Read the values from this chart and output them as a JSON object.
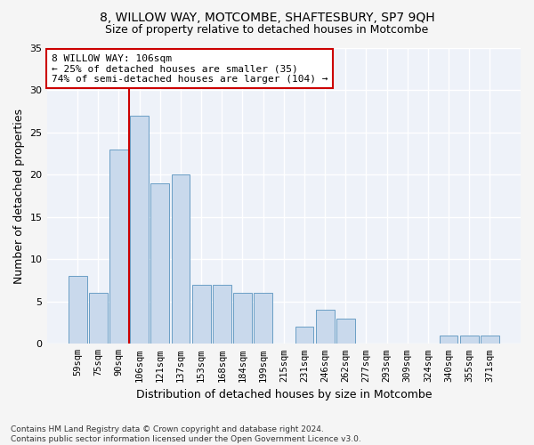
{
  "title": "8, WILLOW WAY, MOTCOMBE, SHAFTESBURY, SP7 9QH",
  "subtitle": "Size of property relative to detached houses in Motcombe",
  "xlabel": "Distribution of detached houses by size in Motcombe",
  "ylabel": "Number of detached properties",
  "categories": [
    "59sqm",
    "75sqm",
    "90sqm",
    "106sqm",
    "121sqm",
    "137sqm",
    "153sqm",
    "168sqm",
    "184sqm",
    "199sqm",
    "215sqm",
    "231sqm",
    "246sqm",
    "262sqm",
    "277sqm",
    "293sqm",
    "309sqm",
    "324sqm",
    "340sqm",
    "355sqm",
    "371sqm"
  ],
  "values": [
    8,
    6,
    23,
    27,
    19,
    20,
    7,
    7,
    6,
    6,
    0,
    2,
    4,
    3,
    0,
    0,
    0,
    0,
    1,
    1,
    1
  ],
  "bar_color": "#c9d9ec",
  "bar_edge_color": "#6a9ec5",
  "vline_color": "#cc0000",
  "vline_index": 3,
  "annotation_text": "8 WILLOW WAY: 106sqm\n← 25% of detached houses are smaller (35)\n74% of semi-detached houses are larger (104) →",
  "annotation_box_color": "#ffffff",
  "annotation_box_edge": "#cc0000",
  "ylim": [
    0,
    35
  ],
  "yticks": [
    0,
    5,
    10,
    15,
    20,
    25,
    30,
    35
  ],
  "footer": "Contains HM Land Registry data © Crown copyright and database right 2024.\nContains public sector information licensed under the Open Government Licence v3.0.",
  "background_color": "#eef2f9",
  "fig_background": "#f5f5f5",
  "grid_color": "#ffffff",
  "title_fontsize": 10,
  "subtitle_fontsize": 9,
  "axis_label_fontsize": 9,
  "tick_fontsize": 7.5,
  "annotation_fontsize": 8,
  "footer_fontsize": 6.5
}
